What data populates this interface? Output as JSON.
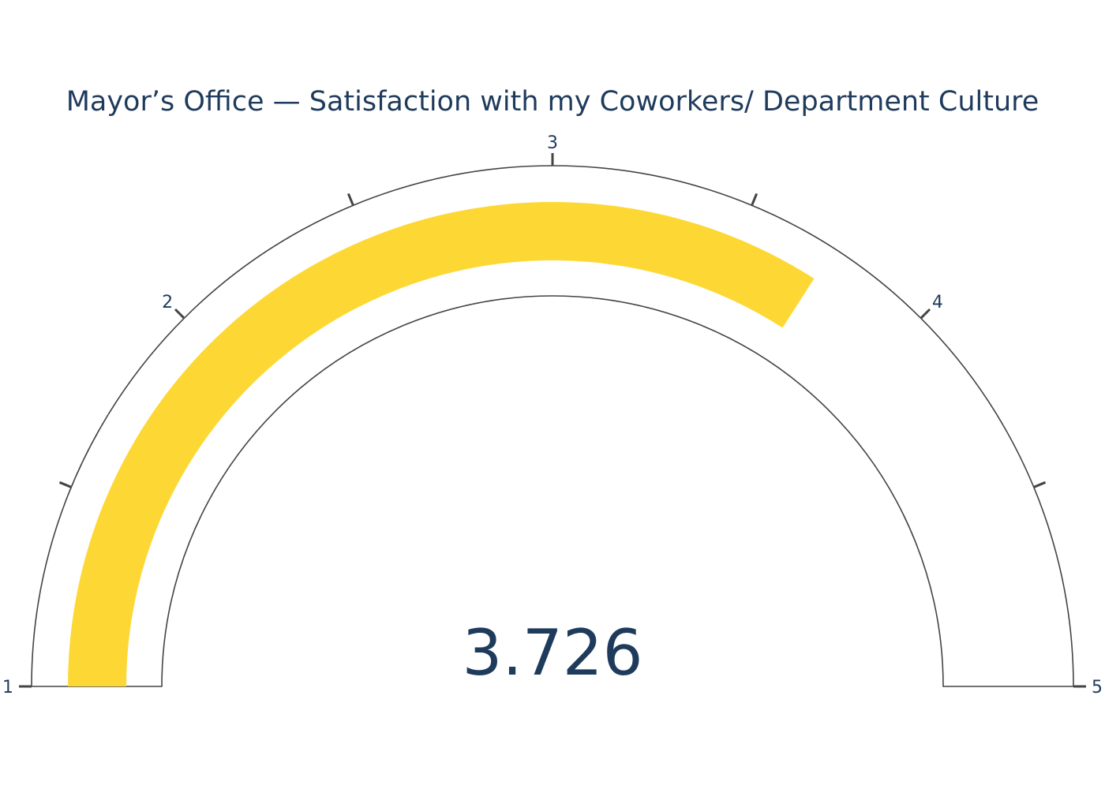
{
  "chart_data": {
    "type": "gauge",
    "title": "Mayor’s Office — Satisfaction with my Coworkers/ Department Culture",
    "value": 3.726,
    "value_label": "3.726",
    "range": [
      1,
      5
    ],
    "tick_values": [
      1,
      1.5,
      2,
      2.5,
      3,
      3.5,
      4,
      4.5,
      5
    ],
    "tick_labels": [
      {
        "value": 1,
        "label": "1"
      },
      {
        "value": 2,
        "label": "2"
      },
      {
        "value": 3,
        "label": "3"
      },
      {
        "value": 4,
        "label": "4"
      },
      {
        "value": 5,
        "label": "5"
      }
    ],
    "bar_color": "#fdd835",
    "outline_color": "#444444",
    "text_color": "#1f3b5c"
  }
}
